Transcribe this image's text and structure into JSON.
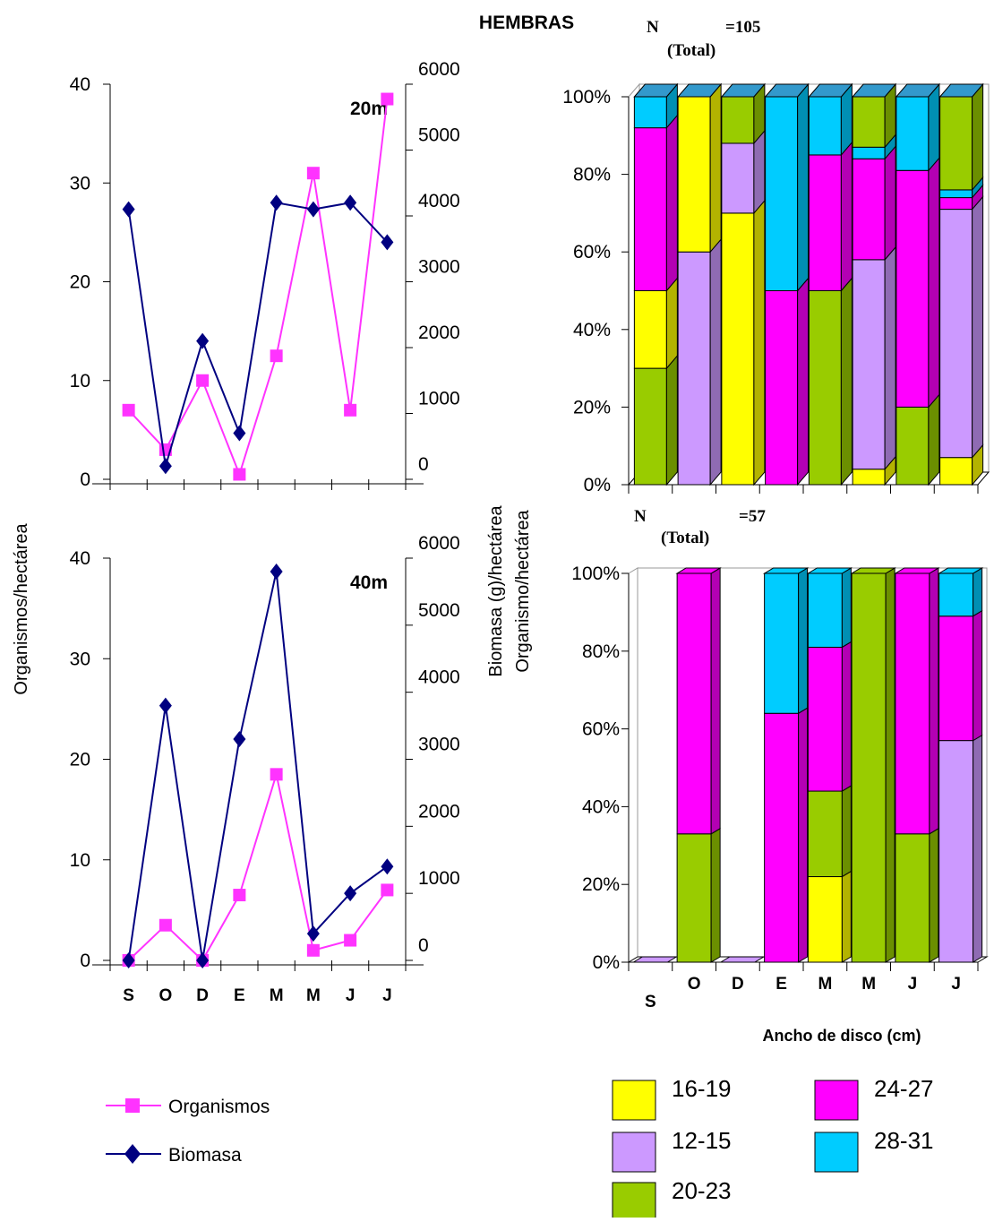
{
  "title": "HEMBRAS",
  "colors": {
    "organismos": "#ff33ff",
    "biomasa": "#000080",
    "s16_19": "#ffff00",
    "s12_15": "#cc99ff",
    "s20_23": "#99cc00",
    "s24_27": "#ff00ff",
    "s28_31": "#00ccff",
    "top_face": "#3399cc"
  },
  "left_labels": {
    "y_left": "Organismos/hectárea",
    "y_right_1": "Biomasa (g)/hectárea",
    "y_right_2": "Organismo/hectárea"
  },
  "bar_labels": {
    "n_label": "N",
    "total_label": "(Total)",
    "xlabel": "Ancho de disco (cm)"
  },
  "line_legend": [
    {
      "key": "organismos",
      "label": "Organismos"
    },
    {
      "key": "biomasa",
      "label": "Biomasa"
    }
  ],
  "bar_legend": [
    {
      "key": "s16_19",
      "label": "16-19"
    },
    {
      "key": "s24_27",
      "label": "24-27"
    },
    {
      "key": "s12_15",
      "label": "12-15"
    },
    {
      "key": "s28_31",
      "label": "28-31"
    },
    {
      "key": "s20_23",
      "label": "20-23"
    }
  ],
  "chart_data": [
    {
      "type": "line",
      "panel_label": "20m",
      "categories": [
        "S",
        "O",
        "D",
        "E",
        "M",
        "M",
        "J",
        "J"
      ],
      "ylim": [
        0,
        40
      ],
      "yticks": [
        "0",
        "10",
        "20",
        "30",
        "40"
      ],
      "y2lim": [
        0,
        6000
      ],
      "y2ticks": [
        "0",
        "1000",
        "2000",
        "3000",
        "4000",
        "5000",
        "6000"
      ],
      "series": [
        {
          "name": "Organismos",
          "axis": "left",
          "values": [
            7,
            3,
            10,
            0.5,
            12.5,
            31,
            7,
            38.5
          ]
        },
        {
          "name": "Biomasa",
          "axis": "right",
          "values": [
            4100,
            200,
            2100,
            700,
            4200,
            4100,
            4200,
            3600
          ]
        }
      ]
    },
    {
      "type": "line",
      "panel_label": "40m",
      "categories": [
        "S",
        "O",
        "D",
        "E",
        "M",
        "M",
        "J",
        "J"
      ],
      "ylim": [
        0,
        40
      ],
      "yticks": [
        "0",
        "10",
        "20",
        "30",
        "40"
      ],
      "y2lim": [
        0,
        6000
      ],
      "y2ticks": [
        "0",
        "1000",
        "2000",
        "3000",
        "4000",
        "5000",
        "6000"
      ],
      "series": [
        {
          "name": "Organismos",
          "axis": "left",
          "values": [
            0,
            3.5,
            0,
            6.5,
            18.5,
            1,
            2,
            7
          ]
        },
        {
          "name": "Biomasa",
          "axis": "right",
          "values": [
            0,
            3800,
            0,
            3300,
            5800,
            400,
            1000,
            1400
          ]
        }
      ]
    },
    {
      "type": "bar",
      "stacked": true,
      "n_total": "=105",
      "categories": [
        "S",
        "O",
        "D",
        "E",
        "M",
        "M",
        "J",
        "J"
      ],
      "yticks": [
        "0%",
        "20%",
        "40%",
        "60%",
        "80%",
        "100%"
      ],
      "series": [
        {
          "key": "s20_23",
          "name": "20-23",
          "values": [
            30,
            0,
            0,
            0,
            50,
            0,
            20,
            0
          ]
        },
        {
          "key": "s16_19",
          "name": "16-19",
          "values": [
            20,
            0,
            70,
            0,
            0,
            4,
            0,
            7
          ]
        },
        {
          "key": "s12_15",
          "name": "12-15",
          "values": [
            0,
            60,
            18,
            0,
            0,
            54,
            0,
            64
          ]
        },
        {
          "key": "s24_27",
          "name": "24-27",
          "values": [
            42,
            0,
            0,
            50,
            35,
            26,
            61,
            3
          ]
        },
        {
          "key": "s28_31",
          "name": "28-31",
          "values": [
            8,
            0,
            0,
            50,
            15,
            3,
            19,
            2
          ]
        },
        {
          "key": "s20_23b",
          "name": "20-23",
          "values": [
            0,
            0,
            12,
            0,
            0,
            13,
            0,
            24
          ]
        },
        {
          "key": "s16_19b",
          "name": "16-19",
          "values": [
            0,
            40,
            0,
            0,
            0,
            0,
            0,
            0
          ]
        }
      ]
    },
    {
      "type": "bar",
      "stacked": true,
      "n_total": "=57",
      "categories": [
        "S",
        "O",
        "D",
        "E",
        "M",
        "M",
        "J",
        "J"
      ],
      "yticks": [
        "0%",
        "20%",
        "40%",
        "60%",
        "80%",
        "100%"
      ],
      "series": [
        {
          "key": "s16_19",
          "name": "16-19",
          "values": [
            0,
            0,
            0,
            0,
            22,
            0,
            0,
            0
          ]
        },
        {
          "key": "s12_15",
          "name": "12-15",
          "values": [
            0,
            0,
            0,
            0,
            0,
            0,
            0,
            57
          ]
        },
        {
          "key": "s20_23",
          "name": "20-23",
          "values": [
            0,
            33,
            0,
            0,
            22,
            100,
            33,
            0
          ]
        },
        {
          "key": "s24_27",
          "name": "24-27",
          "values": [
            0,
            67,
            0,
            64,
            37,
            0,
            67,
            32
          ]
        },
        {
          "key": "s28_31",
          "name": "28-31",
          "values": [
            0,
            0,
            0,
            36,
            19,
            0,
            0,
            11
          ]
        }
      ]
    }
  ]
}
